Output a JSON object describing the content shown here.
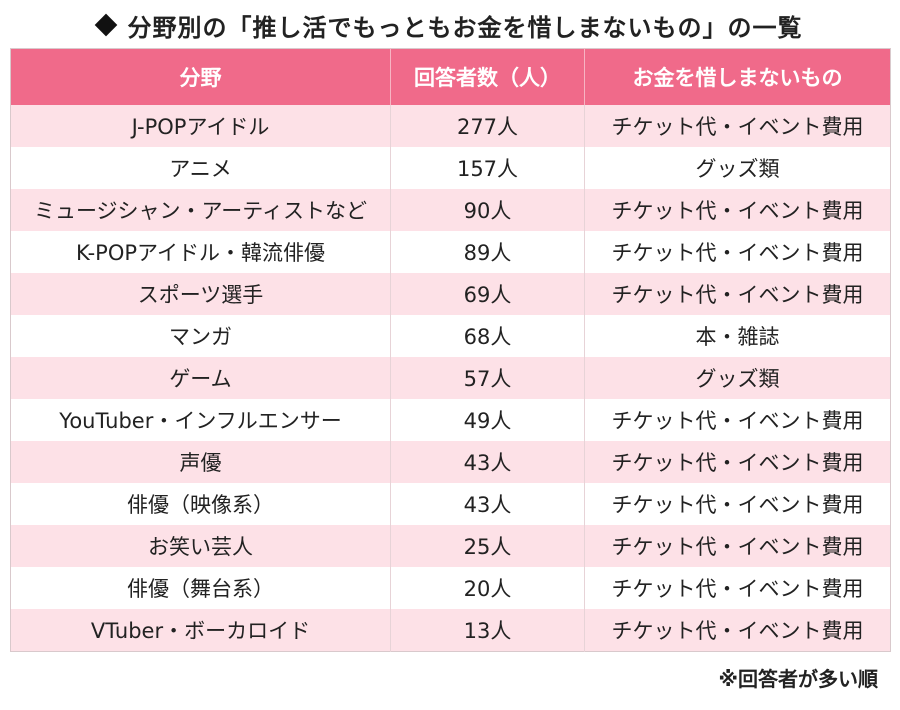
{
  "title": "分野別の「推し活でもっともお金を惜しまないもの」の一覧",
  "table": {
    "headers": [
      "分野",
      "回答者数（人）",
      "お金を惜しまないもの"
    ],
    "rows": [
      [
        "J-POPアイドル",
        "277人",
        "チケット代・イベント費用"
      ],
      [
        "アニメ",
        "157人",
        "グッズ類"
      ],
      [
        "ミュージシャン・アーティストなど",
        "90人",
        "チケット代・イベント費用"
      ],
      [
        "K-POPアイドル・韓流俳優",
        "89人",
        "チケット代・イベント費用"
      ],
      [
        "スポーツ選手",
        "69人",
        "チケット代・イベント費用"
      ],
      [
        "マンガ",
        "68人",
        "本・雑誌"
      ],
      [
        "ゲーム",
        "57人",
        "グッズ類"
      ],
      [
        "YouTuber・インフルエンサー",
        "49人",
        "チケット代・イベント費用"
      ],
      [
        "声優",
        "43人",
        "チケット代・イベント費用"
      ],
      [
        "俳優（映像系）",
        "43人",
        "チケット代・イベント費用"
      ],
      [
        "お笑い芸人",
        "25人",
        "チケット代・イベント費用"
      ],
      [
        "俳優（舞台系）",
        "20人",
        "チケット代・イベント費用"
      ],
      [
        "VTuber・ボーカロイド",
        "13人",
        "チケット代・イベント費用"
      ]
    ]
  },
  "footnote": "※回答者が多い順",
  "colors": {
    "header_bg": "#f06a8a",
    "row_alt_bg": "#fde1e7"
  }
}
